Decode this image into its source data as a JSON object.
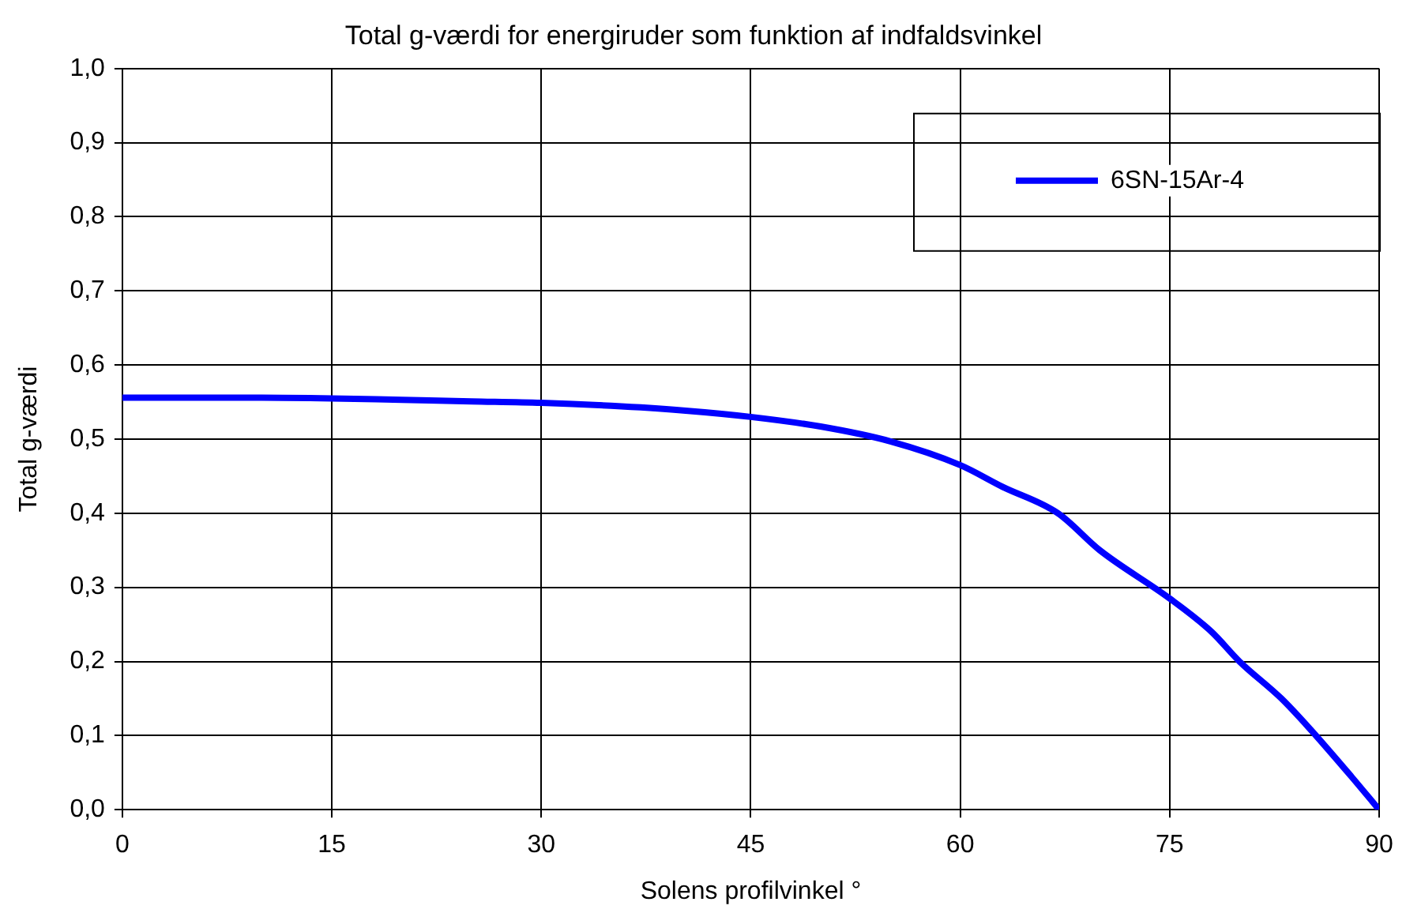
{
  "chart_data": {
    "type": "line",
    "title": "Total g-værdi for energiruder som funktion af indfaldsvinkel",
    "xlabel": "Solens profilvinkel °",
    "ylabel": "Total g-værdi",
    "x": [
      0,
      5,
      10,
      15,
      20,
      25,
      30,
      35,
      40,
      45,
      50,
      55,
      60,
      63,
      67,
      70,
      75,
      78,
      80,
      83,
      85,
      88,
      90
    ],
    "series": [
      {
        "name": "6SN-15Ar-4",
        "color": "#0000ff",
        "values": [
          0.556,
          0.556,
          0.556,
          0.555,
          0.553,
          0.551,
          0.549,
          0.545,
          0.539,
          0.53,
          0.517,
          0.497,
          0.465,
          0.436,
          0.4,
          0.35,
          0.285,
          0.24,
          0.2,
          0.15,
          0.11,
          0.045,
          0
        ]
      }
    ],
    "xlim": [
      0,
      90
    ],
    "xticks": [
      0,
      15,
      30,
      45,
      60,
      75,
      90
    ],
    "ylim": [
      0,
      1
    ],
    "yticks": [
      {
        "value": 0,
        "label": "0,0"
      },
      {
        "value": 0.1,
        "label": "0,1"
      },
      {
        "value": 0.2,
        "label": "0,2"
      },
      {
        "value": 0.3,
        "label": "0,3"
      },
      {
        "value": 0.4,
        "label": "0,4"
      },
      {
        "value": 0.5,
        "label": "0,5"
      },
      {
        "value": 0.6,
        "label": "0,6"
      },
      {
        "value": 0.7,
        "label": "0,7"
      },
      {
        "value": 0.8,
        "label": "0,8"
      },
      {
        "value": 0.9,
        "label": "0,9"
      },
      {
        "value": 1,
        "label": "1,0"
      }
    ],
    "grid": true,
    "legend": "top right",
    "marker": "none",
    "line_style": "solid"
  }
}
